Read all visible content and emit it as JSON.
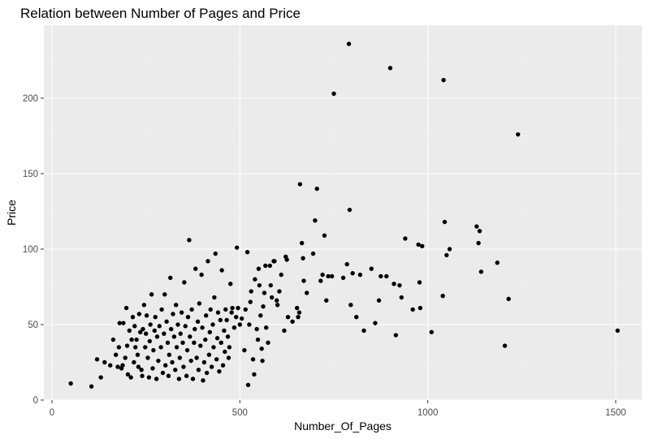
{
  "chart_data": {
    "type": "scatter",
    "title": "Relation between Number of Pages and Price",
    "xlabel": "Number_Of_Pages",
    "ylabel": "Price",
    "xlim": [
      0,
      1560
    ],
    "ylim": [
      0,
      240
    ],
    "xticks": [
      0,
      500,
      1000,
      1500
    ],
    "yticks": [
      0,
      50,
      100,
      150,
      200
    ],
    "xtick_labels": [
      "0",
      "500",
      "1000",
      "1500"
    ],
    "ytick_labels": [
      "0",
      "50",
      "100",
      "150",
      "200"
    ],
    "grid": true,
    "legend": "none",
    "colors": {
      "panel_background": "#ebebeb",
      "grid_major": "#ffffff",
      "point": "#000000",
      "tick_text": "#4d4d4d"
    },
    "points": [
      [
        50,
        11
      ],
      [
        105,
        9
      ],
      [
        120,
        27
      ],
      [
        130,
        15
      ],
      [
        140,
        25
      ],
      [
        155,
        23
      ],
      [
        163,
        40
      ],
      [
        170,
        30
      ],
      [
        175,
        22
      ],
      [
        178,
        35
      ],
      [
        180,
        51
      ],
      [
        185,
        21
      ],
      [
        188,
        23
      ],
      [
        190,
        51
      ],
      [
        195,
        28
      ],
      [
        198,
        61
      ],
      [
        200,
        36
      ],
      [
        202,
        17
      ],
      [
        206,
        46
      ],
      [
        210,
        15
      ],
      [
        212,
        40
      ],
      [
        215,
        55
      ],
      [
        218,
        25
      ],
      [
        220,
        49
      ],
      [
        222,
        35
      ],
      [
        225,
        40
      ],
      [
        228,
        30
      ],
      [
        230,
        22
      ],
      [
        232,
        57
      ],
      [
        235,
        45
      ],
      [
        238,
        20
      ],
      [
        240,
        16
      ],
      [
        242,
        47
      ],
      [
        245,
        63
      ],
      [
        248,
        35
      ],
      [
        250,
        44
      ],
      [
        252,
        56
      ],
      [
        255,
        28
      ],
      [
        258,
        15
      ],
      [
        260,
        39
      ],
      [
        262,
        50
      ],
      [
        265,
        70
      ],
      [
        268,
        21
      ],
      [
        270,
        33
      ],
      [
        273,
        46
      ],
      [
        275,
        55
      ],
      [
        278,
        14
      ],
      [
        280,
        42
      ],
      [
        283,
        26
      ],
      [
        286,
        49
      ],
      [
        290,
        35
      ],
      [
        292,
        60
      ],
      [
        295,
        18
      ],
      [
        298,
        44
      ],
      [
        300,
        70
      ],
      [
        302,
        23
      ],
      [
        305,
        52
      ],
      [
        308,
        38
      ],
      [
        310,
        16
      ],
      [
        312,
        30
      ],
      [
        315,
        81
      ],
      [
        317,
        47
      ],
      [
        320,
        25
      ],
      [
        322,
        57
      ],
      [
        325,
        42
      ],
      [
        328,
        20
      ],
      [
        330,
        63
      ],
      [
        332,
        35
      ],
      [
        335,
        50
      ],
      [
        338,
        14
      ],
      [
        340,
        28
      ],
      [
        342,
        44
      ],
      [
        345,
        58
      ],
      [
        348,
        38
      ],
      [
        350,
        22
      ],
      [
        352,
        78
      ],
      [
        355,
        49
      ],
      [
        358,
        16
      ],
      [
        360,
        33
      ],
      [
        362,
        55
      ],
      [
        365,
        106
      ],
      [
        367,
        42
      ],
      [
        370,
        26
      ],
      [
        372,
        60
      ],
      [
        375,
        14
      ],
      [
        378,
        38
      ],
      [
        380,
        47
      ],
      [
        382,
        87
      ],
      [
        385,
        28
      ],
      [
        388,
        52
      ],
      [
        390,
        20
      ],
      [
        392,
        64
      ],
      [
        395,
        36
      ],
      [
        398,
        83
      ],
      [
        400,
        48
      ],
      [
        402,
        13
      ],
      [
        405,
        25
      ],
      [
        408,
        40
      ],
      [
        410,
        56
      ],
      [
        412,
        18
      ],
      [
        415,
        92
      ],
      [
        418,
        30
      ],
      [
        420,
        45
      ],
      [
        422,
        60
      ],
      [
        425,
        22
      ],
      [
        428,
        50
      ],
      [
        430,
        35
      ],
      [
        432,
        68
      ],
      [
        435,
        97
      ],
      [
        438,
        27
      ],
      [
        440,
        41
      ],
      [
        442,
        58
      ],
      [
        445,
        19
      ],
      [
        448,
        53
      ],
      [
        450,
        38
      ],
      [
        452,
        86
      ],
      [
        455,
        23
      ],
      [
        458,
        46
      ],
      [
        460,
        32
      ],
      [
        462,
        60
      ],
      [
        465,
        53
      ],
      [
        468,
        42
      ],
      [
        470,
        28
      ],
      [
        472,
        35
      ],
      [
        475,
        77
      ],
      [
        478,
        58
      ],
      [
        480,
        61
      ],
      [
        485,
        48
      ],
      [
        490,
        55
      ],
      [
        492,
        101
      ],
      [
        495,
        61
      ],
      [
        500,
        50
      ],
      [
        505,
        54
      ],
      [
        512,
        33
      ],
      [
        515,
        60
      ],
      [
        520,
        98
      ],
      [
        522,
        10
      ],
      [
        525,
        50
      ],
      [
        528,
        65
      ],
      [
        530,
        72
      ],
      [
        535,
        27
      ],
      [
        538,
        17
      ],
      [
        540,
        80
      ],
      [
        545,
        47
      ],
      [
        548,
        40
      ],
      [
        550,
        87
      ],
      [
        552,
        76
      ],
      [
        555,
        56
      ],
      [
        558,
        34
      ],
      [
        560,
        26
      ],
      [
        562,
        62
      ],
      [
        565,
        71
      ],
      [
        568,
        89
      ],
      [
        570,
        48
      ],
      [
        575,
        38
      ],
      [
        580,
        89
      ],
      [
        582,
        76
      ],
      [
        585,
        68
      ],
      [
        590,
        92
      ],
      [
        592,
        92
      ],
      [
        598,
        66
      ],
      [
        600,
        63
      ],
      [
        605,
        72
      ],
      [
        610,
        83
      ],
      [
        618,
        46
      ],
      [
        622,
        95
      ],
      [
        625,
        93
      ],
      [
        628,
        55
      ],
      [
        640,
        52
      ],
      [
        652,
        61
      ],
      [
        655,
        55
      ],
      [
        658,
        58
      ],
      [
        660,
        143
      ],
      [
        665,
        104
      ],
      [
        668,
        94
      ],
      [
        670,
        79
      ],
      [
        678,
        71
      ],
      [
        695,
        97
      ],
      [
        700,
        119
      ],
      [
        705,
        140
      ],
      [
        715,
        79
      ],
      [
        720,
        83
      ],
      [
        725,
        109
      ],
      [
        730,
        66
      ],
      [
        735,
        82
      ],
      [
        745,
        82
      ],
      [
        750,
        203
      ],
      [
        775,
        81
      ],
      [
        785,
        90
      ],
      [
        790,
        236
      ],
      [
        792,
        126
      ],
      [
        795,
        63
      ],
      [
        800,
        84
      ],
      [
        810,
        55
      ],
      [
        820,
        83
      ],
      [
        830,
        46
      ],
      [
        850,
        87
      ],
      [
        860,
        51
      ],
      [
        870,
        66
      ],
      [
        875,
        82
      ],
      [
        890,
        82
      ],
      [
        900,
        220
      ],
      [
        910,
        77
      ],
      [
        915,
        43
      ],
      [
        925,
        76
      ],
      [
        930,
        68
      ],
      [
        940,
        107
      ],
      [
        960,
        60
      ],
      [
        975,
        103
      ],
      [
        978,
        78
      ],
      [
        980,
        61
      ],
      [
        985,
        102
      ],
      [
        1010,
        45
      ],
      [
        1040,
        69
      ],
      [
        1042,
        212
      ],
      [
        1045,
        118
      ],
      [
        1050,
        96
      ],
      [
        1058,
        100
      ],
      [
        1130,
        115
      ],
      [
        1135,
        104
      ],
      [
        1138,
        112
      ],
      [
        1142,
        85
      ],
      [
        1185,
        91
      ],
      [
        1205,
        36
      ],
      [
        1215,
        67
      ],
      [
        1240,
        176
      ],
      [
        1505,
        46
      ]
    ]
  }
}
